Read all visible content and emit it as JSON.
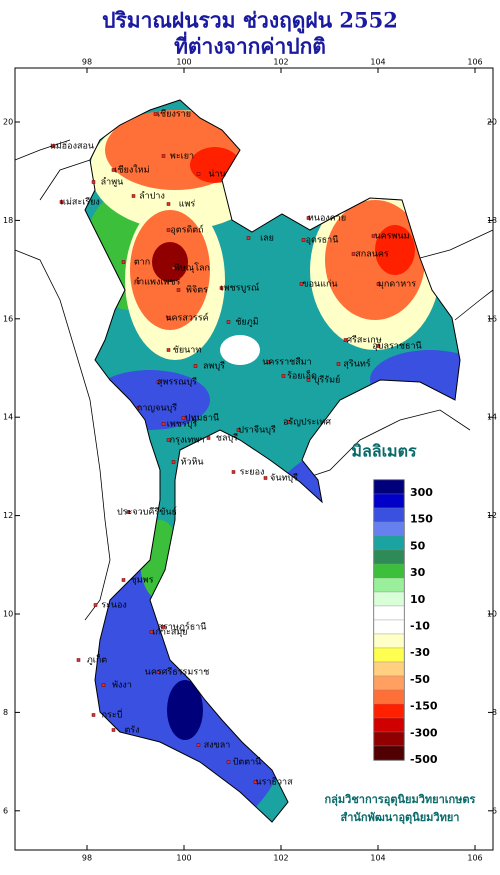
{
  "header": {
    "title": [
      "ปริมาณฝนรวม ช่วงฤดูฝน 2552",
      "ที่ต่างจากค่าปกติ"
    ]
  },
  "map": {
    "lon_ticks": [
      98,
      100,
      102,
      104,
      106
    ],
    "lat_ticks": [
      6,
      8,
      10,
      12,
      14,
      16,
      18,
      20
    ],
    "places": [
      "เชียงราย",
      "แม่ฮ่องสอน",
      "เชียงใหม่",
      "พะเยา",
      "น่าน",
      "ลำพูน",
      "ลำปาง",
      "แพร่",
      "แม่สะเรียง",
      "อุตรดิตถ์",
      "ตาก",
      "พิษณุโลก",
      "กำแพงเพชร",
      "พิจิตร",
      "เพชรบูรณ์",
      "นครสวรรค์",
      "ชัยนาท",
      "ลพบุรี",
      "สุพรรณบุรี",
      "กาญจนบุรี",
      "ปทุมธานี",
      "กรุงเทพฯ",
      "ชลบุรี",
      "ระยอง",
      "จันทบุรี",
      "ประจวบคีรีขันธ์",
      "ชุมพร",
      "ระนอง",
      "สุราษฎร์ธานี",
      "ภูเก็ต",
      "นครศรีธรรมราช",
      "ตรัง",
      "สงขลา",
      "ปัตตานี",
      "นราธิวาส",
      "หนองคาย",
      "อุดรธานี",
      "เลย",
      "ขอนแก่น",
      "นครพนม",
      "สกลนคร",
      "มุกดาหาร",
      "ชัยภูมิ",
      "นครราชสีมา",
      "สุรินทร์",
      "อุบลราชธานี",
      "ร้อยเอ็ด",
      "ศรีสะเกษ",
      "บุรีรัมย์",
      "ปราจีนบุรี",
      "อรัญประเทศ",
      "เพชรบุรี",
      "กระบี่",
      "พังงา",
      "หัวหิน",
      "เกาะสมุย"
    ]
  },
  "legend": {
    "title": "มิลลิเมตร",
    "colors": [
      "#00007a",
      "#0000c8",
      "#3a50e0",
      "#6680f0",
      "#1aa3a0",
      "#2e8b57",
      "#3cc03c",
      "#9af09a",
      "#d8ffd8",
      "#ffffff",
      "#ffffff",
      "#ffffc8",
      "#ffff50",
      "#ffd080",
      "#ffa060",
      "#ff7038",
      "#ff2000",
      "#d00000",
      "#900000",
      "#500000"
    ],
    "labels": [
      "300",
      "150",
      "50",
      "30",
      "10",
      "-10",
      "-30",
      "-50",
      "-150",
      "-300",
      "-500"
    ]
  },
  "credits": [
    "กลุ่มวิชาการอุตุนิยมวิทยาเกษตร",
    "สำนักพัฒนาอุตุนิยมวิทยา"
  ]
}
